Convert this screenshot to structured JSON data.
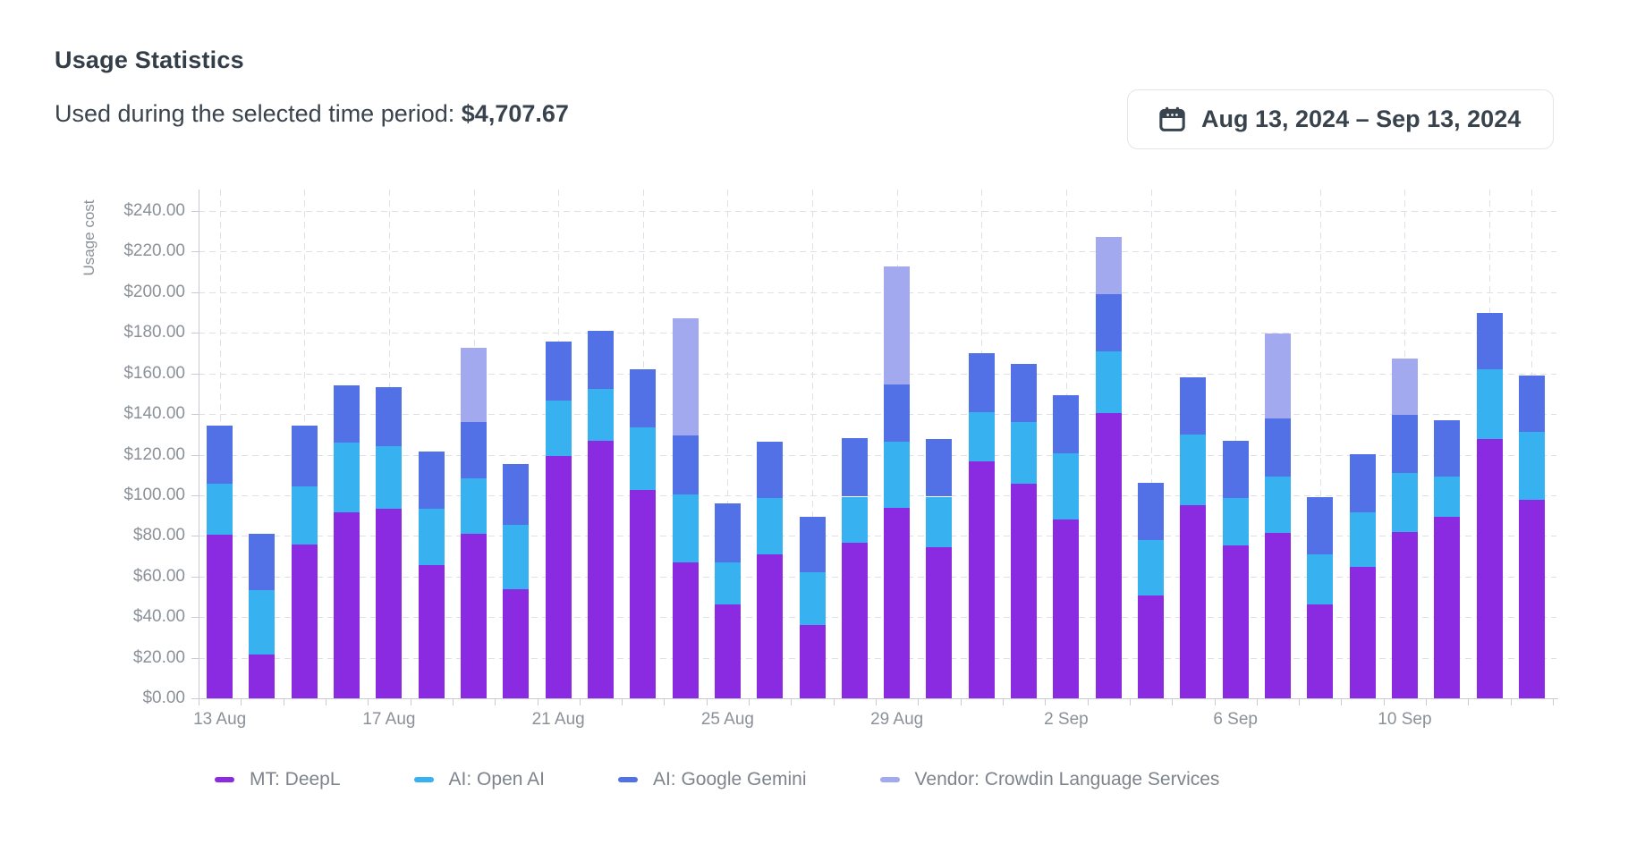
{
  "header": {
    "title": "Usage Statistics",
    "subtitle_label": "Used during the selected time period:",
    "subtitle_value": "$4,707.67",
    "date_range": "Aug 13, 2024 – Sep 13, 2024"
  },
  "chart_data": {
    "type": "bar",
    "stacked": true,
    "title": "Usage Statistics",
    "xlabel": "",
    "ylabel": "Usage cost",
    "ylim": [
      0,
      250
    ],
    "grid": true,
    "legend_position": "bottom",
    "y_ticks": [
      {
        "value": 0,
        "label": "$0.00"
      },
      {
        "value": 20,
        "label": "$20.00"
      },
      {
        "value": 40,
        "label": "$40.00"
      },
      {
        "value": 60,
        "label": "$60.00"
      },
      {
        "value": 80,
        "label": "$80.00"
      },
      {
        "value": 100,
        "label": "$100.00"
      },
      {
        "value": 120,
        "label": "$120.00"
      },
      {
        "value": 140,
        "label": "$140.00"
      },
      {
        "value": 160,
        "label": "$160.00"
      },
      {
        "value": 180,
        "label": "$180.00"
      },
      {
        "value": 200,
        "label": "$200.00"
      },
      {
        "value": 220,
        "label": "$220.00"
      },
      {
        "value": 240,
        "label": "$240.00"
      }
    ],
    "categories": [
      "13 Aug",
      "14 Aug",
      "15 Aug",
      "16 Aug",
      "17 Aug",
      "18 Aug",
      "19 Aug",
      "20 Aug",
      "21 Aug",
      "22 Aug",
      "23 Aug",
      "24 Aug",
      "25 Aug",
      "26 Aug",
      "27 Aug",
      "28 Aug",
      "29 Aug",
      "30 Aug",
      "31 Aug",
      "1 Sep",
      "2 Sep",
      "3 Sep",
      "4 Sep",
      "5 Sep",
      "6 Sep",
      "7 Sep",
      "8 Sep",
      "9 Sep",
      "10 Sep",
      "11 Sep",
      "12 Sep",
      "13 Sep"
    ],
    "x_label_indices": [
      0,
      4,
      8,
      12,
      16,
      20,
      24,
      28
    ],
    "x_tick_labels": [
      "13 Aug",
      "17 Aug",
      "21 Aug",
      "25 Aug",
      "29 Aug",
      "2 Sep",
      "6 Sep",
      "10 Sep"
    ],
    "series": [
      {
        "name": "MT: DeepL",
        "color": "#8a2be2",
        "values": [
          80.7,
          21.6,
          75.9,
          91.6,
          93.5,
          65.6,
          81.0,
          53.9,
          119.2,
          126.8,
          102.5,
          66.8,
          46.2,
          71.0,
          36.0,
          76.6,
          93.8,
          74.6,
          116.8,
          105.8,
          87.9,
          140.3,
          50.6,
          94.9,
          75.4,
          81.4,
          46.2,
          64.6,
          81.9,
          89.2,
          127.8,
          97.7
        ]
      },
      {
        "name": "AI: Open AI",
        "color": "#38b1f1",
        "values": [
          25.0,
          31.6,
          28.6,
          34.5,
          30.5,
          27.6,
          27.3,
          31.7,
          27.6,
          25.7,
          30.8,
          33.8,
          20.6,
          27.6,
          26.0,
          22.7,
          32.4,
          24.7,
          24.0,
          30.4,
          32.9,
          30.5,
          27.3,
          35.2,
          23.2,
          27.6,
          24.8,
          27.0,
          29.2,
          19.8,
          34.1,
          33.4
        ]
      },
      {
        "name": "AI: Google Gemini",
        "color": "#5271e6",
        "values": [
          28.5,
          27.8,
          29.7,
          27.9,
          29.2,
          28.4,
          27.9,
          29.6,
          28.7,
          28.4,
          28.9,
          28.7,
          29.2,
          27.9,
          27.5,
          28.8,
          28.2,
          28.3,
          29.0,
          28.3,
          28.4,
          28.2,
          28.3,
          28.0,
          28.3,
          28.9,
          28.3,
          28.7,
          28.7,
          28.1,
          27.9,
          27.9
        ]
      },
      {
        "name": "Vendor: Crowdin Language Services",
        "color": "#a3a9ee",
        "values": [
          0,
          0,
          0,
          0,
          0,
          0,
          36.4,
          0,
          0,
          0,
          0,
          57.7,
          0,
          0,
          0,
          0,
          58.4,
          0,
          0,
          0,
          0,
          28.4,
          0,
          0,
          0,
          41.7,
          0,
          0,
          27.6,
          0,
          0,
          0
        ]
      }
    ]
  },
  "colors": {
    "text_dark": "#39434d",
    "text_axis": "#8b9199",
    "text_legend": "#7e848c",
    "grid_line": "#dde0e5",
    "axis_line": "#c8ccd2",
    "button_border": "#e2e5ea",
    "background": "#ffffff"
  }
}
